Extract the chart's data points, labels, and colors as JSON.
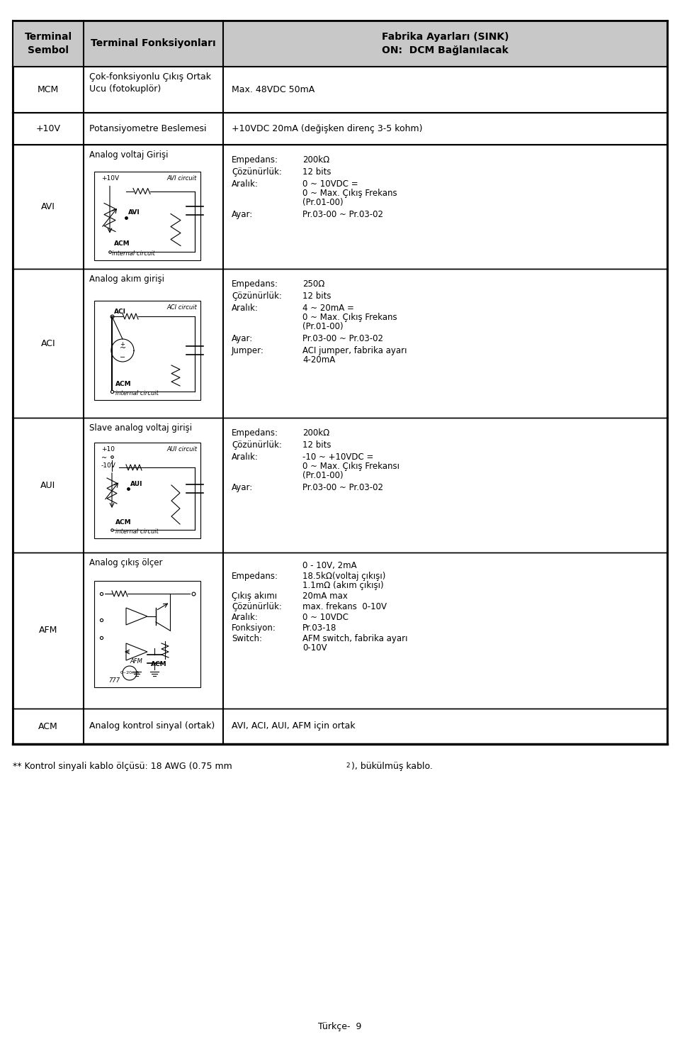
{
  "title": "",
  "page_label": "Türkçe-  9",
  "header": {
    "col1": "Terminal\nSembol",
    "col2": "Terminal Fonksiyonları",
    "col3": "Fabrika Ayarları (SINK)\nON:  DCM Bağlanılacak"
  },
  "footnote": "** Kontrol sinyali kablo ölçüsü: 18 AWG (0.75 mm²), bükülmüş kabo.",
  "rows": [
    {
      "symbol": "MCM",
      "func_text": "Çok-fonksiyonlu Çıkış Ortak\nUcu (fotokuplör)",
      "spec_text": "Max. 48VDC 50mA"
    },
    {
      "symbol": "+10V",
      "func_text": "Potansiyometre Beslemesi",
      "spec_text": "+10VDC 20mA (değişken direnç 3-5 kohm)"
    },
    {
      "symbol": "AVI",
      "func_title": "Analog voltaj Girişi",
      "circuit": "AVI",
      "spec_lines": [
        [
          "Empedans:",
          "200kΩ"
        ],
        [
          "Çözünürlük:",
          "12 bits"
        ],
        [
          "Aralık:",
          "0 ~ 10VDC =\n0 ~ Max. Çıkış Frekans\n(Pr.01-00)"
        ],
        [
          "Ayar:",
          "Pr.03-00 ~ Pr.03-02"
        ]
      ]
    },
    {
      "symbol": "ACI",
      "func_title": "Analog akım girişi",
      "circuit": "ACI",
      "spec_lines": [
        [
          "Empedans:",
          "250Ω"
        ],
        [
          "Çözünürlük:",
          "12 bits"
        ],
        [
          "Aralık:",
          "4 ~ 20mA =\n0 ~ Max. Çıkış Frekans\n(Pr.01-00)"
        ],
        [
          "Ayar:",
          "Pr.03-00 ~ Pr.03-02"
        ],
        [
          "Jumper:",
          "ACI jumper, fabrika ayarı\n4-20mA"
        ]
      ]
    },
    {
      "symbol": "AUI",
      "func_title": "Slave analog voltaj girişi",
      "circuit": "AUI",
      "spec_lines": [
        [
          "Empedans:",
          "200kΩ"
        ],
        [
          "Çözünürlük:",
          "12 bits"
        ],
        [
          "Aralık:",
          "-10 ~ +10VDC =\n0 ~ Max. Çıkış Frekansı\n(Pr.01-00)"
        ],
        [
          "Ayar:",
          "Pr.03-00 ~ Pr.03-02"
        ]
      ]
    },
    {
      "symbol": "AFM",
      "func_title": "Analog çıkış ölçer",
      "circuit": "AFM",
      "spec_lines": [
        [
          "",
          "0 - 10V, 2mA"
        ],
        [
          "Empedans:",
          "18.5kΩ(voltaj çıkışı)\n1.1mΩ (akım çıkışı)"
        ],
        [
          "Çıkış akımı",
          "20mA max"
        ],
        [
          "Çözünürlük:",
          "max. frekans  0-10V"
        ],
        [
          "Aralık:",
          "0 ~ 10VDC"
        ],
        [
          "Fonksiyon:",
          "Pr.03-18"
        ],
        [
          "Switch:",
          "AFM switch, fabrika ayarı\n0-10V"
        ]
      ]
    },
    {
      "symbol": "ACM",
      "func_text": "Analog kontrol sinyal (ortak)",
      "spec_text": "AVI, ACI, AUI, AFM için ortak"
    }
  ],
  "bg_color": "#ffffff",
  "header_bg": "#e8e8e8",
  "border_color": "#000000",
  "text_color": "#000000",
  "font_size": 9,
  "header_font_size": 10
}
